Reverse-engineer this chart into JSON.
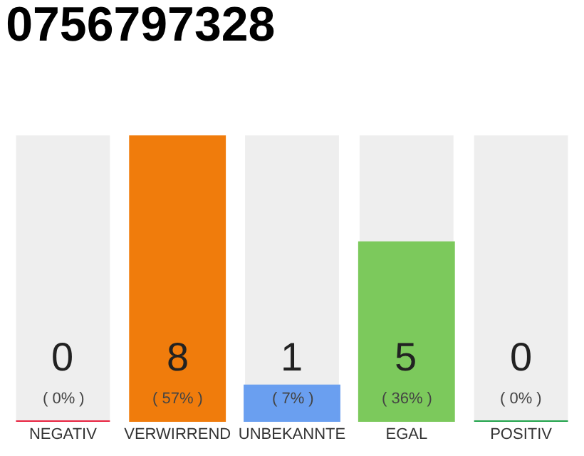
{
  "chart_data": {
    "type": "bar",
    "title": "0756797328",
    "categories": [
      "NEGATIV",
      "VERWIRREND",
      "UNBEKANNTE",
      "EGAL",
      "POSITIV"
    ],
    "values": [
      0,
      8,
      1,
      5,
      0
    ],
    "colors": [
      "#e8213f",
      "#f07c0c",
      "#6a9ff0",
      "#7cc95c",
      "#1fa34a"
    ],
    "value_labels": [
      "0\n( 0% )",
      "8\n( 57% )",
      "1\n( 7% )",
      "5\n( 36% )",
      "0\n( 0% )"
    ],
    "grid": false,
    "legend": false
  }
}
